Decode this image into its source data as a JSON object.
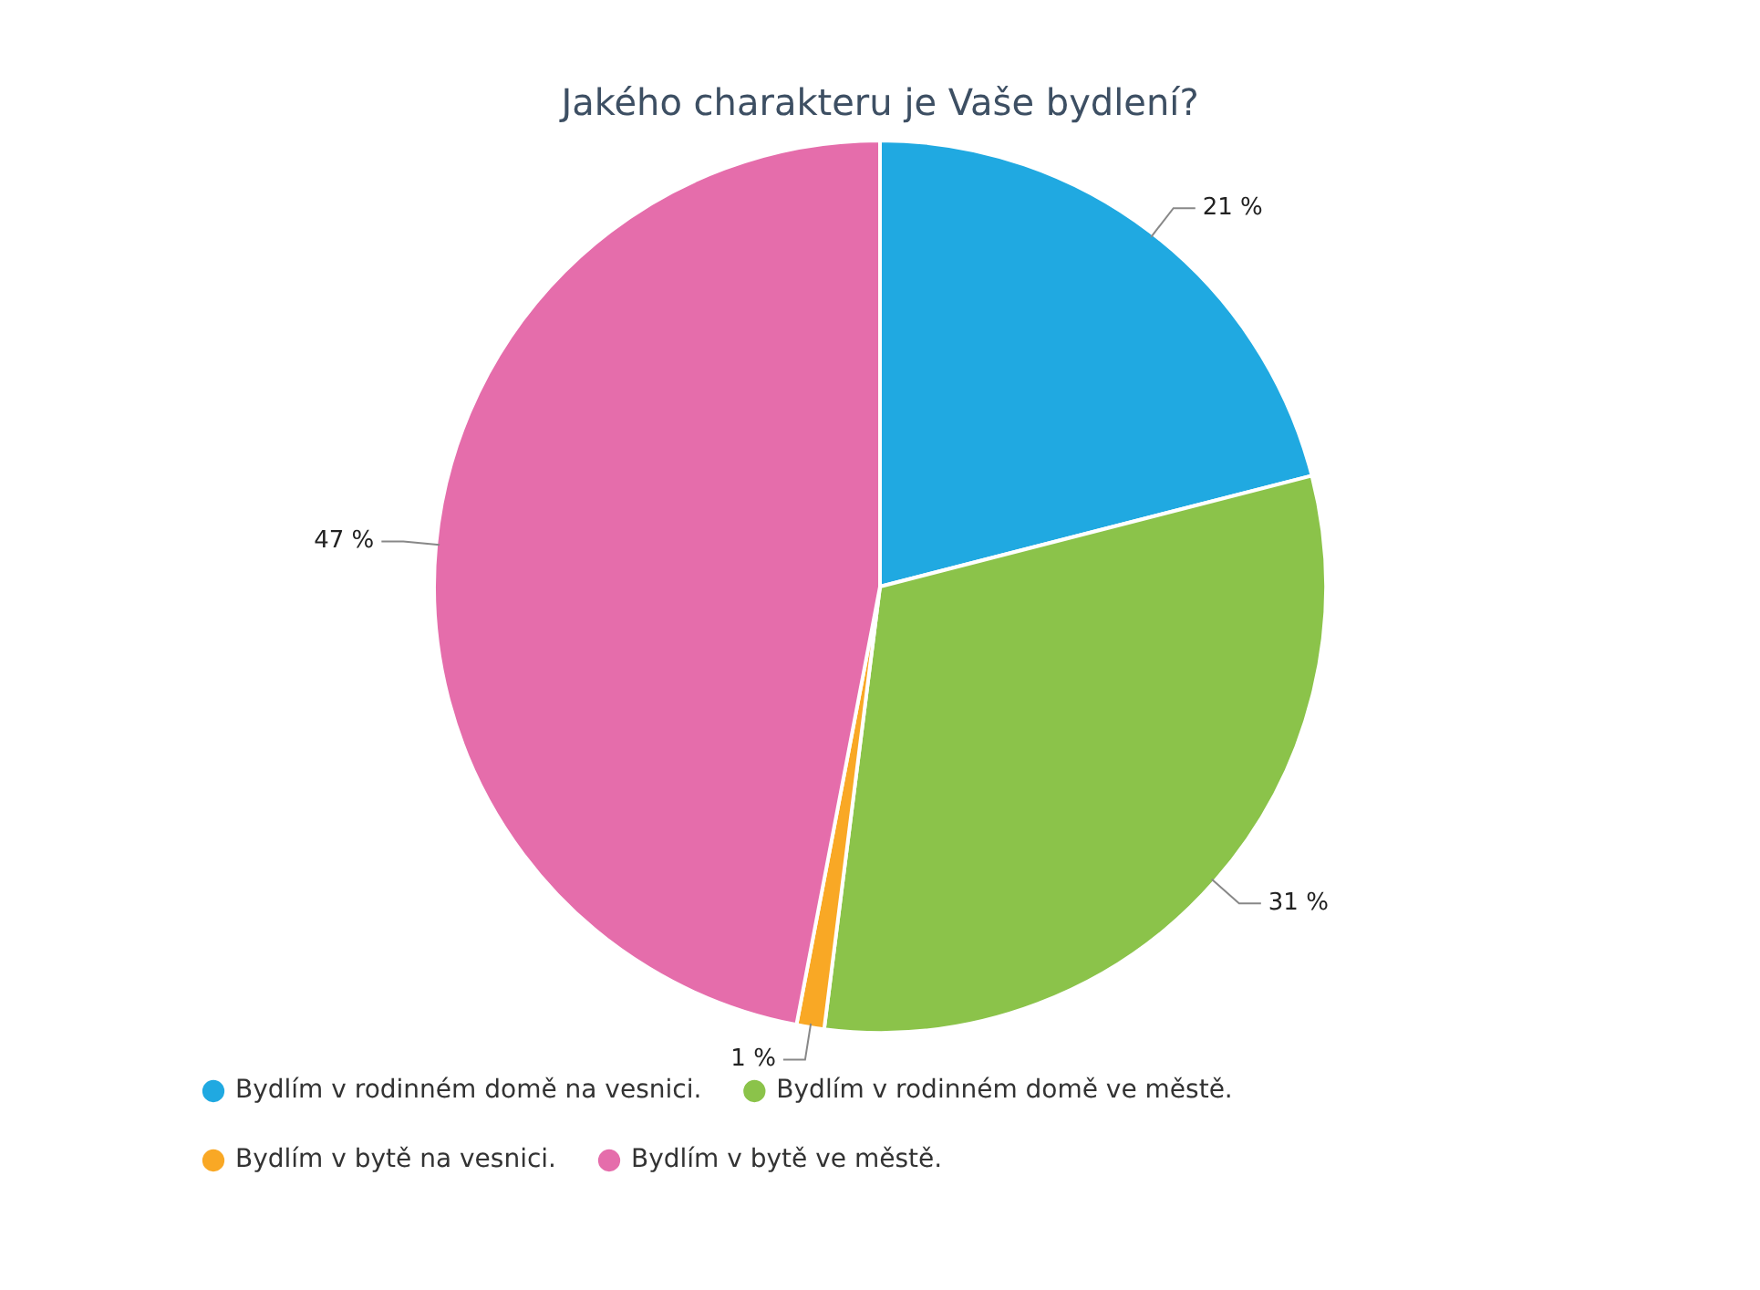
{
  "chart_data": {
    "type": "pie",
    "title": "Jakého charakteru je Vaše bydlení?",
    "categories": [
      "Bydlím v rodinném domě na vesnici.",
      "Bydlím v rodinném domě ve městě.",
      "Bydlím v bytě na vesnici.",
      "Bydlím v bytě ve městě."
    ],
    "values": [
      21,
      31,
      1,
      47
    ],
    "colors": [
      "#20a9e1",
      "#8bc34a",
      "#f9a825",
      "#e56dab"
    ],
    "value_labels": [
      "21 %",
      "31 %",
      "1 %",
      "47 %"
    ],
    "legend": "bottom"
  }
}
